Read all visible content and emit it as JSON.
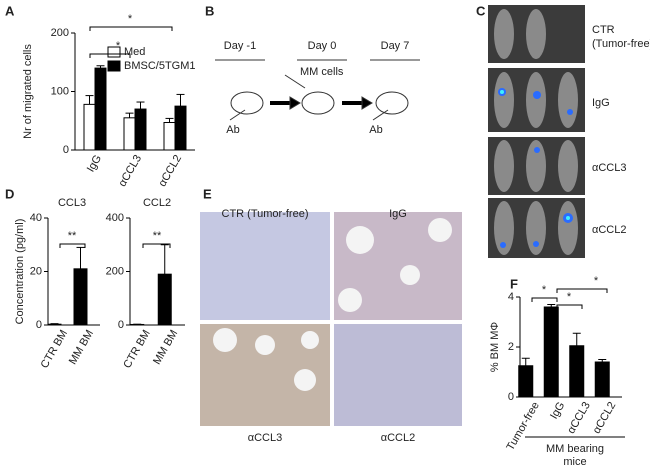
{
  "chart_data": [
    {
      "type": "bar",
      "panel": "A",
      "y_label": "Nr of migrated cells",
      "categories": [
        "IgG",
        "αCCL3",
        "αCCL2"
      ],
      "series": [
        {
          "name": "Med",
          "color": "#ffffff",
          "values": [
            78,
            55,
            47
          ],
          "errors": [
            15,
            8,
            7
          ]
        },
        {
          "name": "BMSC/5TGM1",
          "color": "#000000",
          "values": [
            140,
            70,
            75
          ],
          "errors": [
            4,
            12,
            20
          ]
        }
      ],
      "ylim": [
        0,
        200
      ],
      "yticks": [
        0,
        100,
        200
      ],
      "annotations": [
        "*",
        "*"
      ]
    },
    {
      "type": "bar",
      "panel": "D",
      "title": "CCL3",
      "y_label": "Concentration (pg/ml)",
      "categories": [
        "CTR BM",
        "MM BM"
      ],
      "values": [
        0.3,
        21
      ],
      "errors": [
        0.2,
        8
      ],
      "color": "#000000",
      "ylim": [
        0,
        40
      ],
      "yticks": [
        0,
        20,
        40
      ],
      "annotations": [
        "**"
      ]
    },
    {
      "type": "bar",
      "title": "CCL2",
      "categories": [
        "CTR BM",
        "MM BM"
      ],
      "values": [
        2,
        190
      ],
      "errors": [
        1,
        110
      ],
      "color": "#000000",
      "ylim": [
        0,
        400
      ],
      "yticks": [
        0,
        200,
        400
      ],
      "annotations": [
        "**"
      ]
    },
    {
      "type": "bar",
      "panel": "F",
      "y_label": "% BM MΦ",
      "categories": [
        "Tumor-free",
        "IgG",
        "αCCL3",
        "αCCL2"
      ],
      "values": [
        1.25,
        3.6,
        2.05,
        1.4
      ],
      "errors": [
        0.3,
        0.1,
        0.5,
        0.1
      ],
      "color": "#000000",
      "ylim": [
        0,
        4
      ],
      "yticks": [
        0,
        2,
        4
      ],
      "annotations": [
        "*",
        "*",
        "*"
      ],
      "group_label": [
        "MM bearing",
        "mice"
      ]
    }
  ],
  "schematic": {
    "panel": "B",
    "days": [
      "Day -1",
      "Day 0",
      "Day 7"
    ],
    "injection": "MM cells",
    "treatment": [
      "Ab",
      "Ab"
    ]
  },
  "imaging": {
    "panel": "C",
    "rows": [
      [
        "CTR",
        "(Tumor-free)"
      ],
      [
        "IgG"
      ],
      [
        "αCCL3"
      ],
      [
        "αCCL2"
      ]
    ]
  },
  "histology": {
    "panel": "E",
    "labels": [
      "CTR (Tumor-free)",
      "IgG",
      "αCCL3",
      "αCCL2"
    ]
  }
}
